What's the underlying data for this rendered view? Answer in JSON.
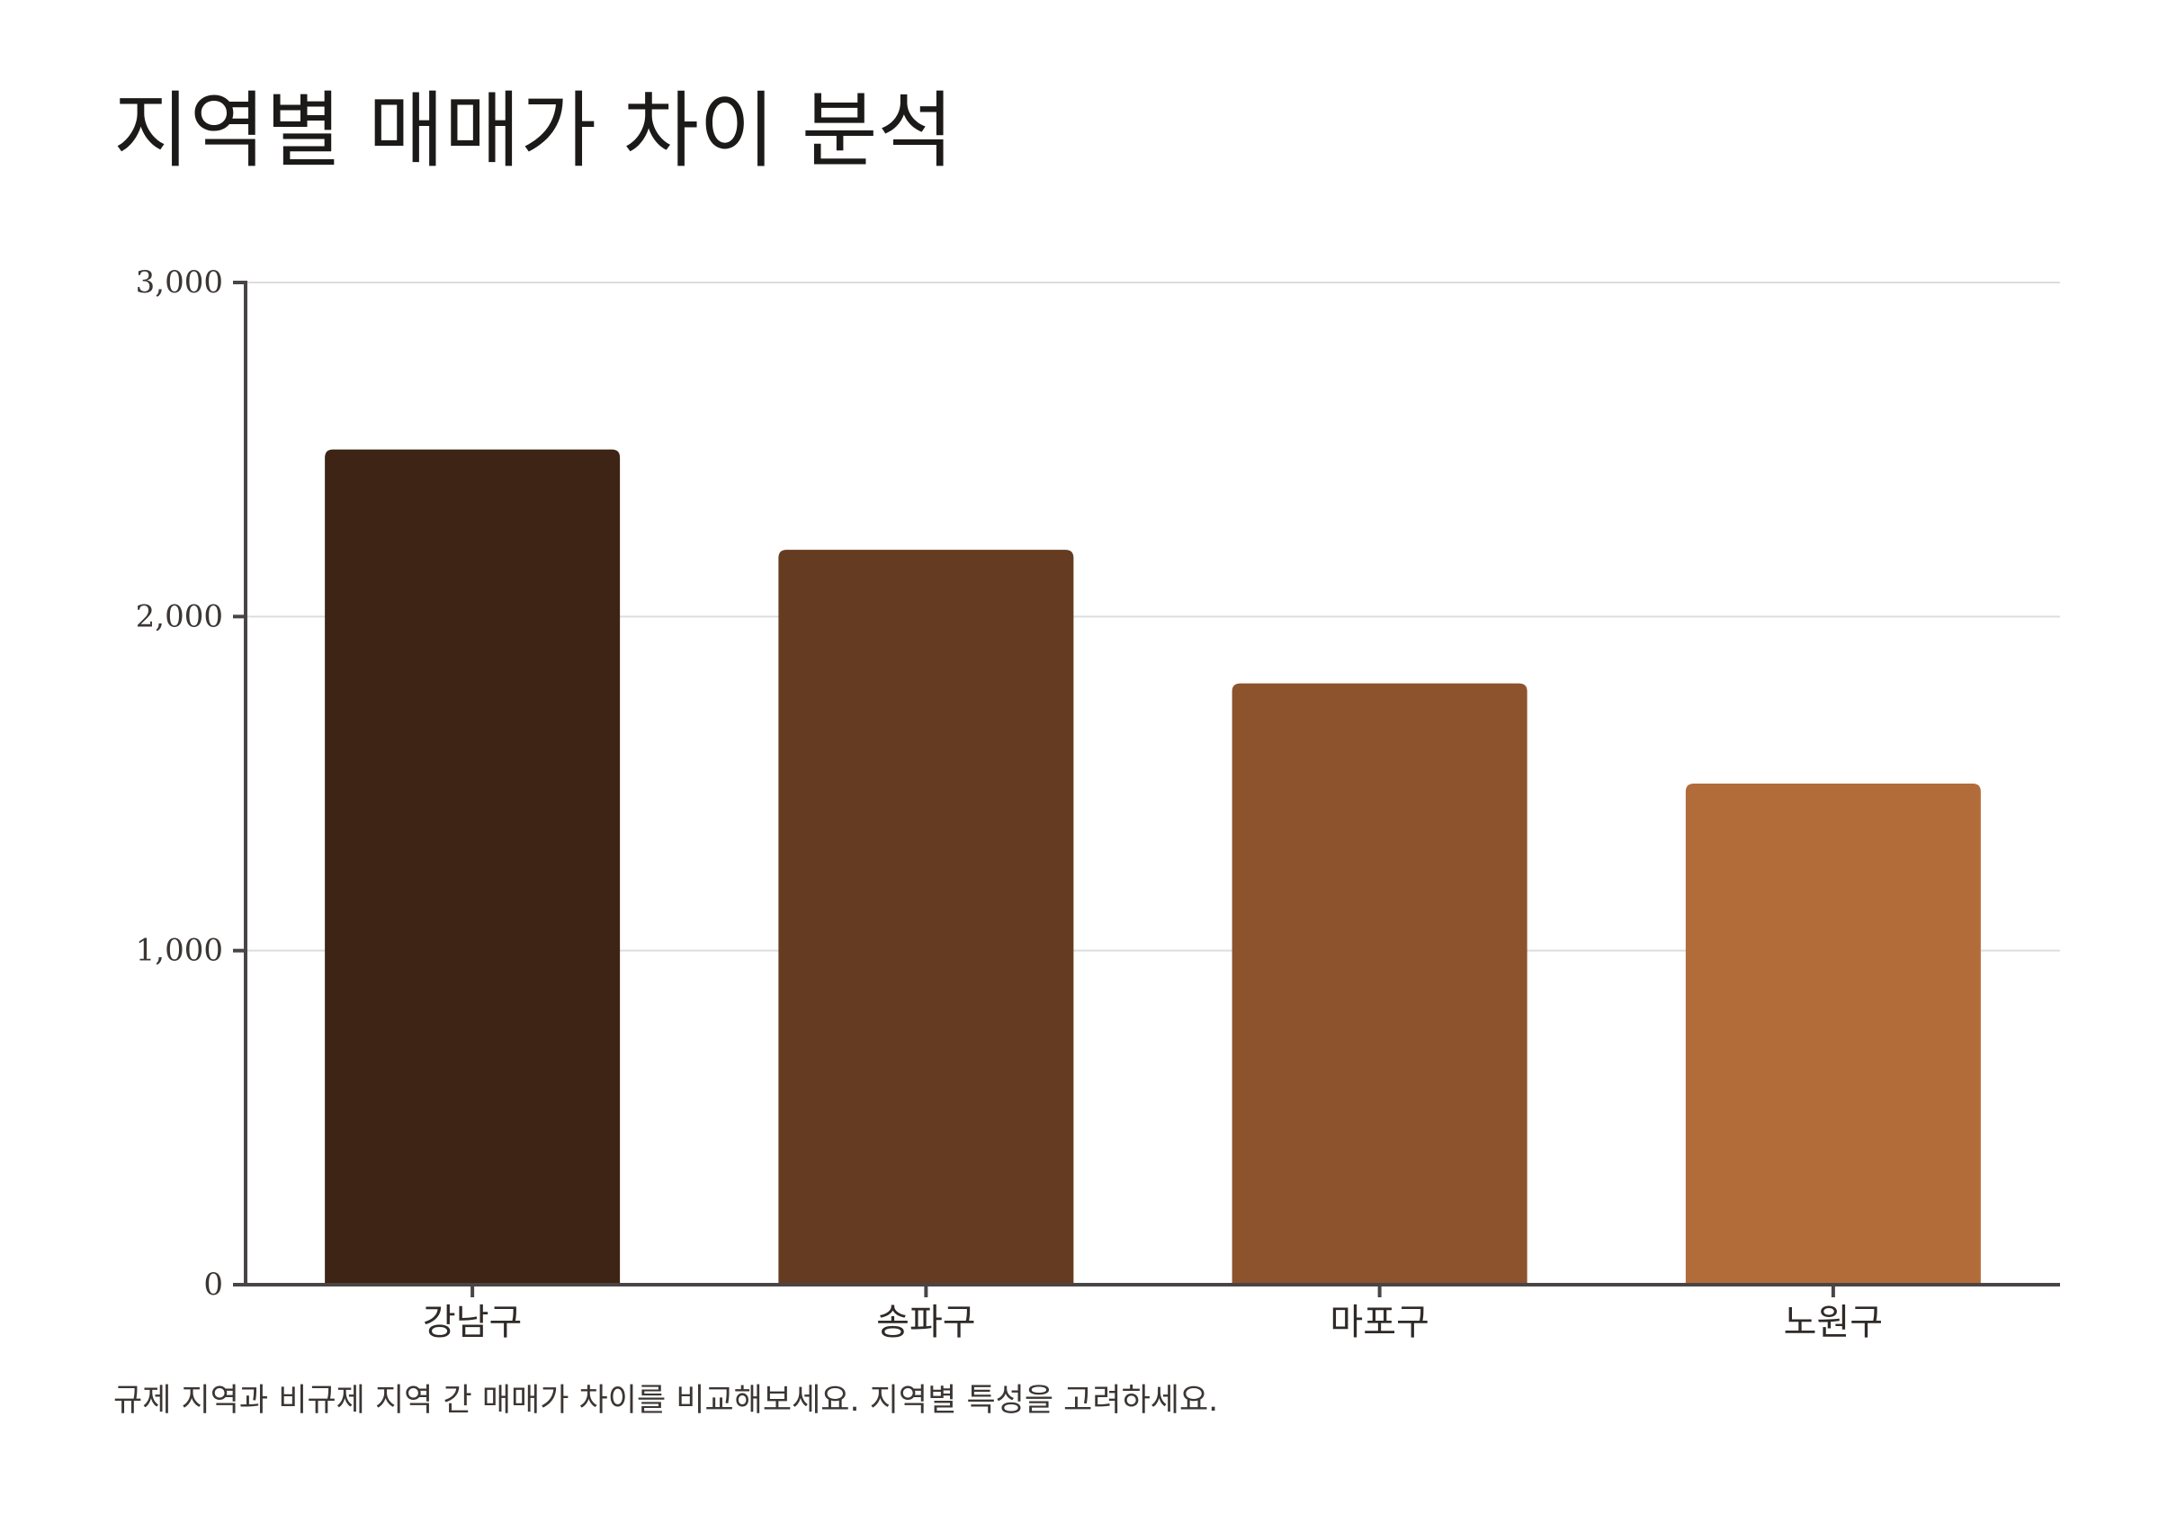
{
  "title": "지역별 매매가 차이 분석",
  "caption": "규제 지역과 비규제 지역 간 매매가 차이를 비교해보세요. 지역별 특성을 고려하세요.",
  "chart_data": {
    "type": "bar",
    "title": "지역별 매매가 차이 분석",
    "xlabel": "",
    "ylabel": "",
    "categories": [
      "강남구",
      "송파구",
      "마포구",
      "노원구"
    ],
    "values": [
      2500,
      2200,
      1800,
      1500
    ],
    "ylim": [
      0,
      3000
    ],
    "yticks": [
      0,
      1000,
      2000,
      3000
    ],
    "ytick_labels": [
      "0",
      "1,000",
      "2,000",
      "3,000"
    ],
    "grid": true,
    "legend": "none",
    "colors": [
      "#3d2414",
      "#653c21",
      "#8c532d",
      "#b26c3a"
    ],
    "axis_color": "#4a4545",
    "grid_color": "#dddddd"
  }
}
